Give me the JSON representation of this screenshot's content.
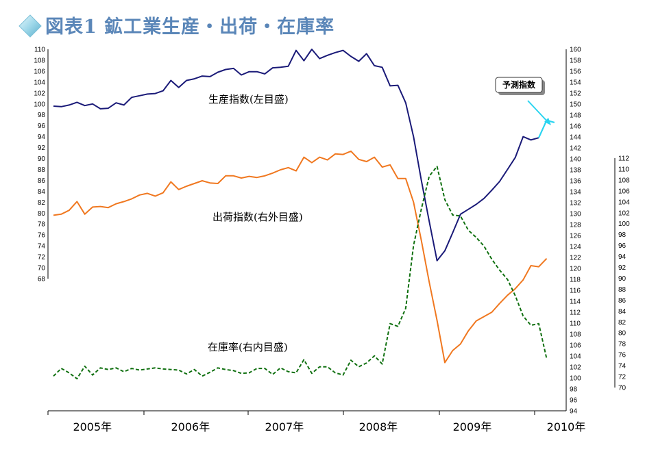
{
  "chart_data": {
    "type": "line",
    "title": "図表1 鉱工業生産・出荷・在庫率",
    "x_labels": [
      "2005年",
      "2006年",
      "2007年",
      "2008年",
      "2009年",
      "2010年"
    ],
    "axes": {
      "left": {
        "ylim": [
          68,
          110
        ],
        "step": 2
      },
      "right_outer": {
        "ylim": [
          94,
          160
        ],
        "step": 2
      },
      "right_inner": {
        "ylim": [
          70,
          112
        ],
        "step": 2
      }
    },
    "annotations": {
      "production": "生産指数(左目盛)",
      "shipments": "出荷指数(右外目盛)",
      "inventory": "在庫率(右内目盛)",
      "forecast": "予測指数"
    },
    "series": [
      {
        "key": "production",
        "axis": "left",
        "color": "#1a1a78",
        "dash": false,
        "start": "2005-01",
        "values": [
          99.6,
          99.5,
          99.8,
          100.3,
          99.7,
          100.0,
          99.1,
          99.2,
          100.2,
          99.8,
          101.2,
          101.5,
          101.8,
          101.9,
          102.4,
          104.3,
          103.0,
          104.3,
          104.6,
          105.1,
          105.0,
          105.8,
          106.3,
          106.5,
          105.3,
          105.9,
          105.9,
          105.5,
          106.6,
          106.7,
          106.9,
          109.8,
          107.9,
          110.0,
          108.3,
          108.9,
          109.4,
          109.8,
          108.7,
          107.8,
          109.2,
          107.0,
          106.7,
          103.3,
          103.4,
          100.2,
          94.0,
          86.0,
          78.5,
          71.3,
          73.1,
          76.4,
          79.8,
          80.7,
          81.6,
          82.7,
          84.2,
          85.8,
          88.0,
          90.2,
          94.0,
          93.4,
          93.8
        ]
      },
      {
        "key": "forecast",
        "axis": "left",
        "color": "#2ad4f0",
        "dash": false,
        "start": "2010-03",
        "values": [
          93.8,
          97.0,
          96.6
        ]
      },
      {
        "key": "shipments",
        "axis": "right_outer",
        "color": "#f07820",
        "dash": false,
        "start": "2005-01",
        "values": [
          129.7,
          129.9,
          130.6,
          132.2,
          129.9,
          131.2,
          131.3,
          131.1,
          131.8,
          132.2,
          132.7,
          133.4,
          133.7,
          133.2,
          133.8,
          135.8,
          134.4,
          135.0,
          135.5,
          136.0,
          135.6,
          135.5,
          136.9,
          136.9,
          136.5,
          136.8,
          136.6,
          136.9,
          137.4,
          138.0,
          138.4,
          137.8,
          140.3,
          139.3,
          140.3,
          139.8,
          140.9,
          140.8,
          141.4,
          139.9,
          139.5,
          140.3,
          138.5,
          138.9,
          136.4,
          136.4,
          132.1,
          125.1,
          117.5,
          110.5,
          102.8,
          105.0,
          106.2,
          108.6,
          110.4,
          111.2,
          112.0,
          113.6,
          115.1,
          116.3,
          117.9,
          120.5,
          120.3,
          121.8
        ]
      },
      {
        "key": "inventory",
        "axis": "right_inner",
        "color": "#107010",
        "dash": true,
        "start": "2005-01",
        "values": [
          72.1,
          73.5,
          72.7,
          71.6,
          73.9,
          72.3,
          73.6,
          73.3,
          73.6,
          72.9,
          73.5,
          73.2,
          73.4,
          73.6,
          73.4,
          73.3,
          73.2,
          72.5,
          73.3,
          72.1,
          72.8,
          73.6,
          73.3,
          73.1,
          72.6,
          72.7,
          73.5,
          73.5,
          72.4,
          73.6,
          72.9,
          72.7,
          75.1,
          72.6,
          73.8,
          73.8,
          72.7,
          72.3,
          75.0,
          73.8,
          74.5,
          75.8,
          74.3,
          81.7,
          81.2,
          84.5,
          96.0,
          102.7,
          108.7,
          110.5,
          104.4,
          101.6,
          101.4,
          98.8,
          97.5,
          95.9,
          93.5,
          91.5,
          89.8,
          86.8,
          83.1,
          81.4,
          81.7,
          75.3
        ]
      }
    ]
  }
}
